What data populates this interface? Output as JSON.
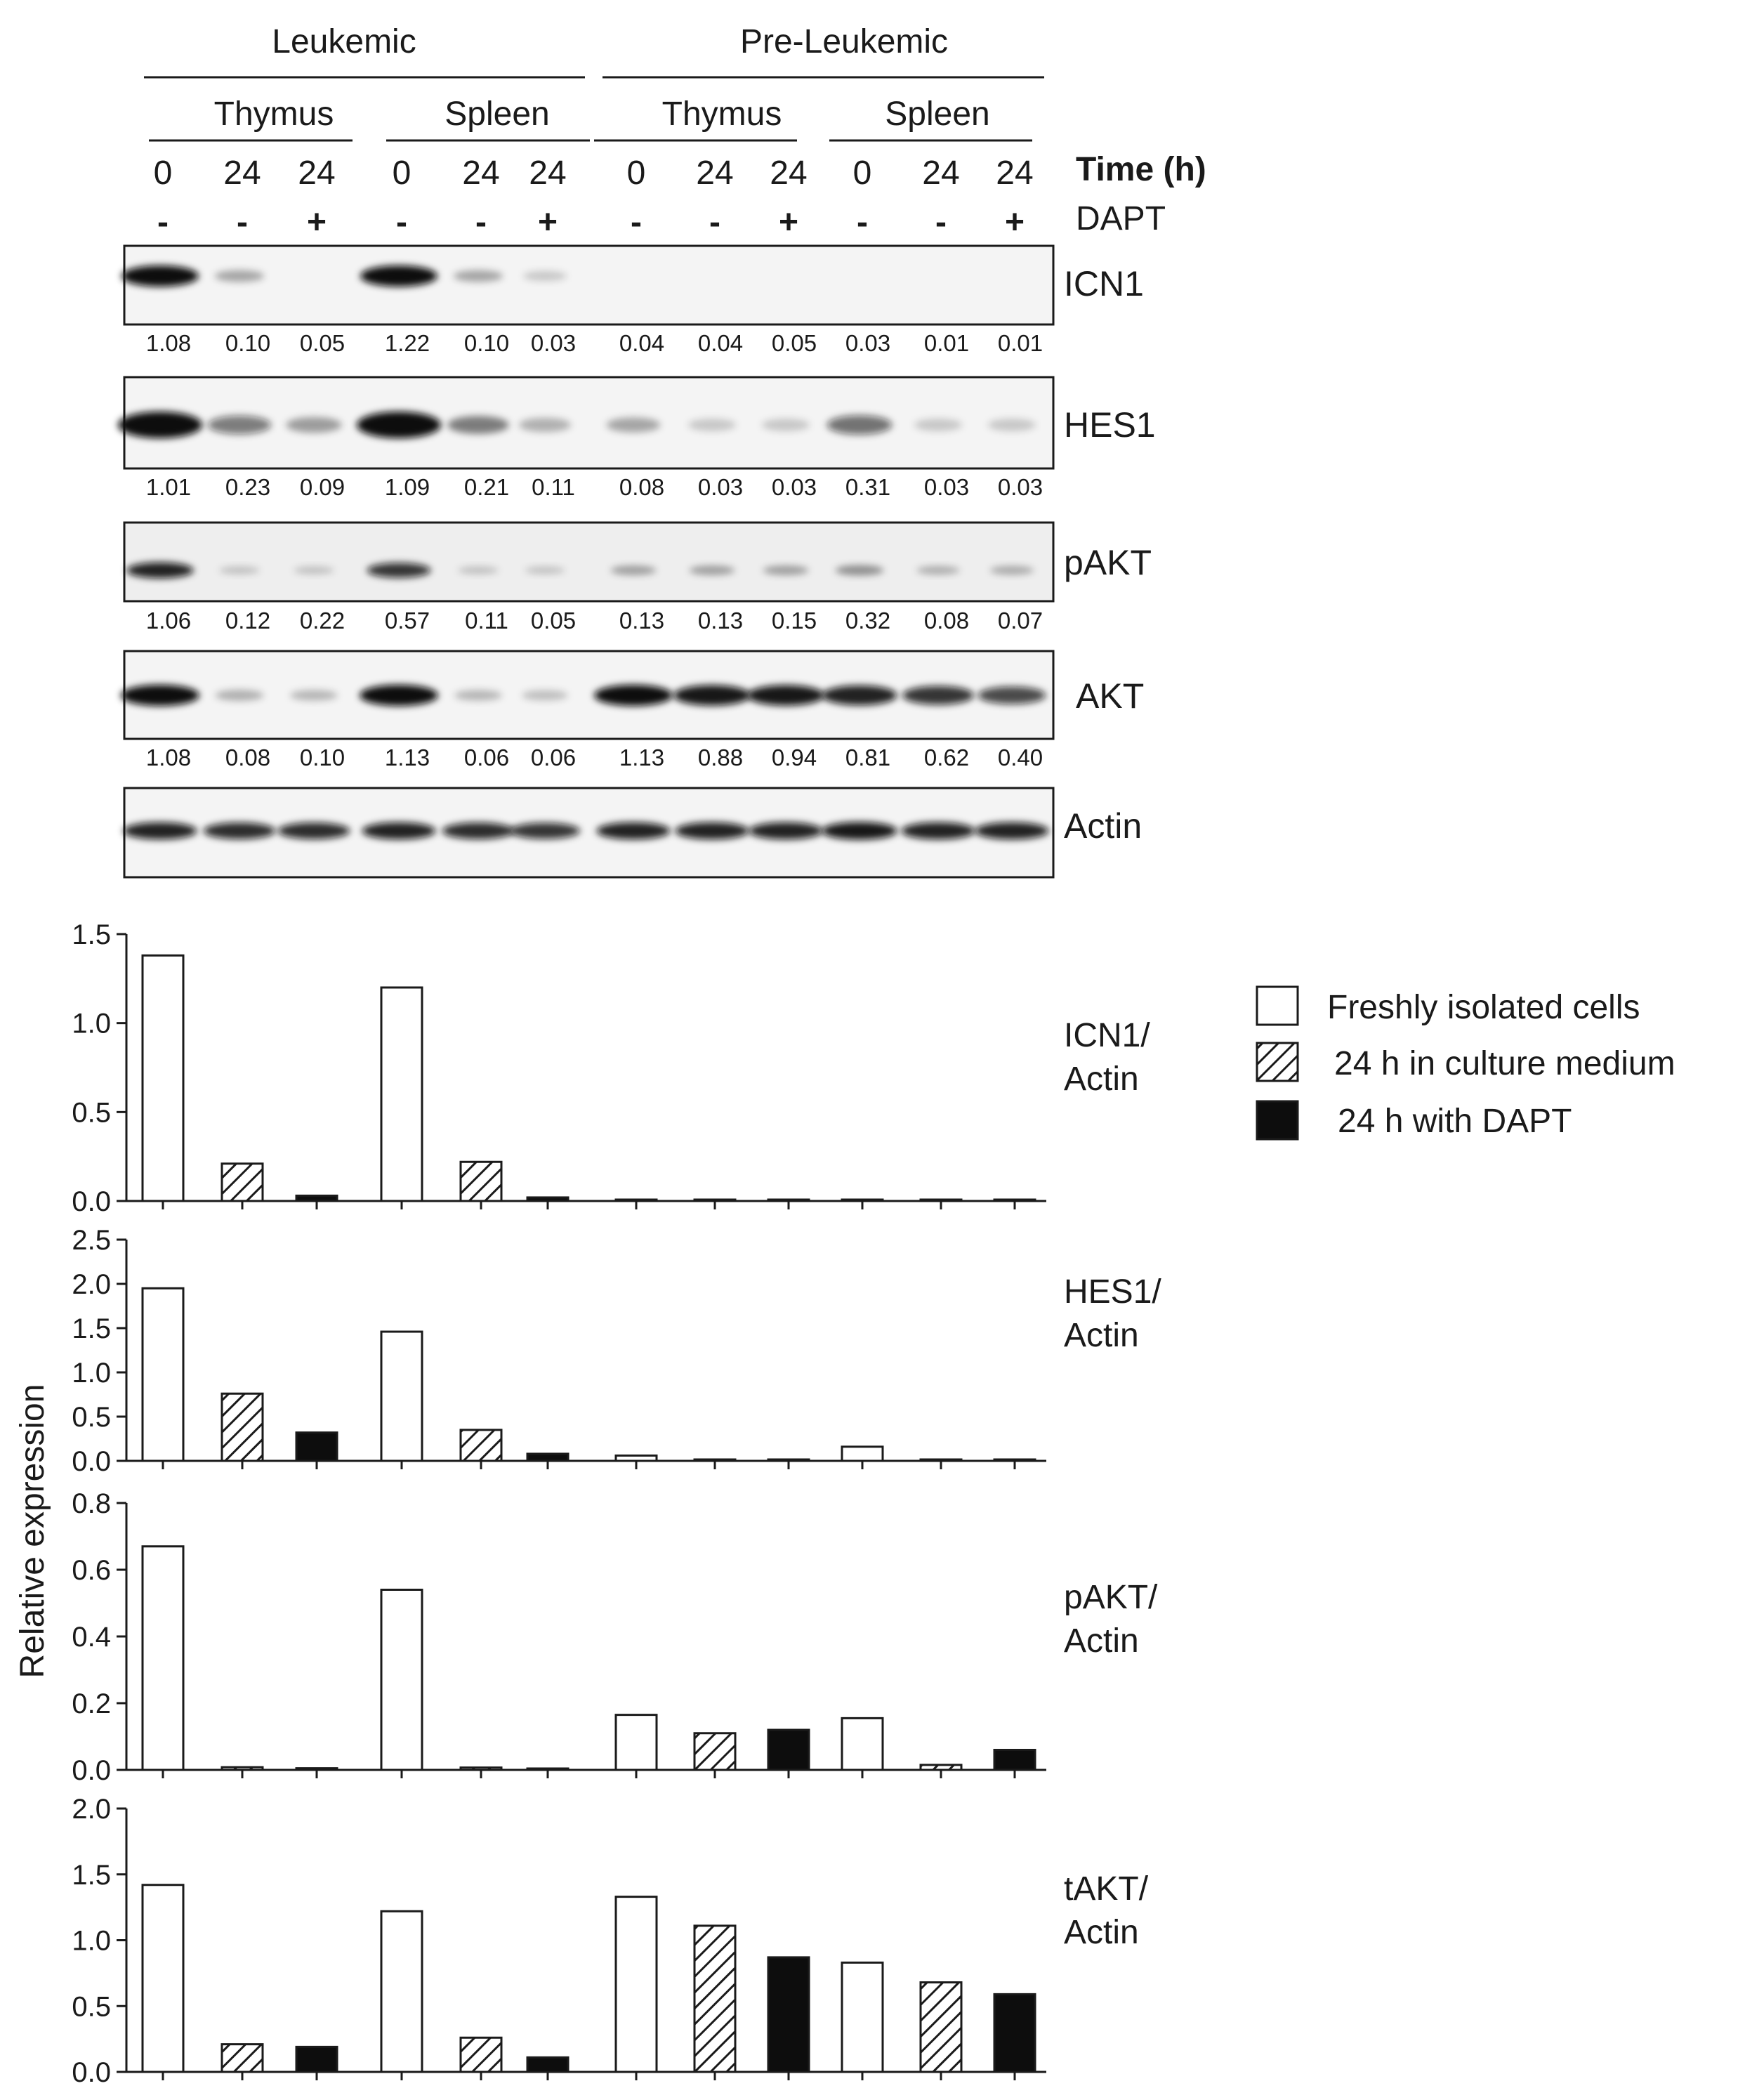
{
  "header": {
    "groups": [
      "Leukemic",
      "Pre-Leukemic"
    ],
    "tissues": [
      "Thymus",
      "Spleen",
      "Thymus",
      "Spleen"
    ],
    "time_label": "Time (h)",
    "dapt_label": "DAPT",
    "times": [
      "0",
      "24",
      "24",
      "0",
      "24",
      "24",
      "0",
      "24",
      "24",
      "0",
      "24",
      "24"
    ],
    "dapt": [
      "-",
      "-",
      "+",
      "-",
      "-",
      "+",
      "-",
      "-",
      "+",
      "-",
      "-",
      "+"
    ]
  },
  "blots": [
    {
      "label": "ICN1",
      "values": [
        "1.08",
        "0.10",
        "0.05",
        "1.22",
        "0.10",
        "0.03",
        "0.04",
        "0.04",
        "0.05",
        "0.03",
        "0.01",
        "0.01"
      ],
      "band": [
        1.0,
        0.2,
        0.0,
        1.0,
        0.2,
        0.04,
        0,
        0,
        0,
        0,
        0,
        0
      ]
    },
    {
      "label": "HES1",
      "values": [
        "1.01",
        "0.23",
        "0.09",
        "1.09",
        "0.21",
        "0.11",
        "0.08",
        "0.03",
        "0.03",
        "0.31",
        "0.03",
        "0.03"
      ],
      "band": [
        1.0,
        0.45,
        0.25,
        1.0,
        0.4,
        0.15,
        0.2,
        0.04,
        0.04,
        0.5,
        0.04,
        0.04
      ]
    },
    {
      "label": "pAKT",
      "values": [
        "1.06",
        "0.12",
        "0.22",
        "0.57",
        "0.11",
        "0.05",
        "0.13",
        "0.13",
        "0.15",
        "0.32",
        "0.08",
        "0.07"
      ],
      "band": [
        0.9,
        0.05,
        0.05,
        0.8,
        0.05,
        0.04,
        0.22,
        0.22,
        0.22,
        0.3,
        0.14,
        0.16
      ]
    },
    {
      "label": "AKT",
      "values": [
        "1.08",
        "0.08",
        "0.10",
        "1.13",
        "0.06",
        "0.06",
        "1.13",
        "0.88",
        "0.94",
        "0.81",
        "0.62",
        "0.40"
      ],
      "band": [
        1.0,
        0.15,
        0.12,
        1.0,
        0.12,
        0.08,
        1.0,
        0.95,
        0.95,
        0.9,
        0.8,
        0.7
      ]
    },
    {
      "label": "Actin",
      "values": [],
      "band": [
        0.9,
        0.85,
        0.85,
        0.9,
        0.85,
        0.8,
        0.9,
        0.9,
        0.9,
        0.95,
        0.9,
        0.9
      ]
    }
  ],
  "legend": [
    {
      "label": "Freshly isolated cells",
      "pattern": "open"
    },
    {
      "label": "24 h in culture medium",
      "pattern": "hatched"
    },
    {
      "label": "24 h with DAPT",
      "pattern": "black"
    }
  ],
  "y_axis_label": "Relative expression",
  "colors": {
    "ink": "#1a1a1a",
    "blot_bg": "#f4f4f4",
    "band": "#0d0d0d"
  },
  "chart_data": [
    {
      "type": "bar",
      "label_lines": [
        "ICN1/",
        "Actin"
      ],
      "ylim": [
        0,
        1.5
      ],
      "yticks": [
        "0.0",
        "0.5",
        "1.0",
        "1.5"
      ],
      "values": [
        1.38,
        0.21,
        0.03,
        1.2,
        0.22,
        0.02,
        0.005,
        0.005,
        0.005,
        0.005,
        0.005,
        0.005
      ]
    },
    {
      "type": "bar",
      "label_lines": [
        "HES1/",
        "Actin"
      ],
      "ylim": [
        0,
        2.5
      ],
      "yticks": [
        "0.0",
        "0.5",
        "1.0",
        "1.5",
        "2.0",
        "2.5"
      ],
      "values": [
        1.95,
        0.76,
        0.32,
        1.46,
        0.35,
        0.08,
        0.06,
        0.01,
        0.01,
        0.16,
        0.01,
        0.005
      ]
    },
    {
      "type": "bar",
      "label_lines": [
        "pAKT/",
        "Actin"
      ],
      "ylim": [
        0,
        0.8
      ],
      "yticks": [
        "0.0",
        "0.2",
        "0.4",
        "0.6",
        "0.8"
      ],
      "values": [
        0.67,
        0.008,
        0.005,
        0.54,
        0.007,
        0.004,
        0.165,
        0.11,
        0.12,
        0.155,
        0.015,
        0.06
      ]
    },
    {
      "type": "bar",
      "label_lines": [
        "tAKT/",
        "Actin"
      ],
      "ylim": [
        0,
        2.0
      ],
      "yticks": [
        "0.0",
        "0.5",
        "1.0",
        "1.5",
        "2.0"
      ],
      "values": [
        1.42,
        0.21,
        0.19,
        1.22,
        0.26,
        0.11,
        1.33,
        1.11,
        0.87,
        0.83,
        0.68,
        0.59
      ]
    }
  ]
}
